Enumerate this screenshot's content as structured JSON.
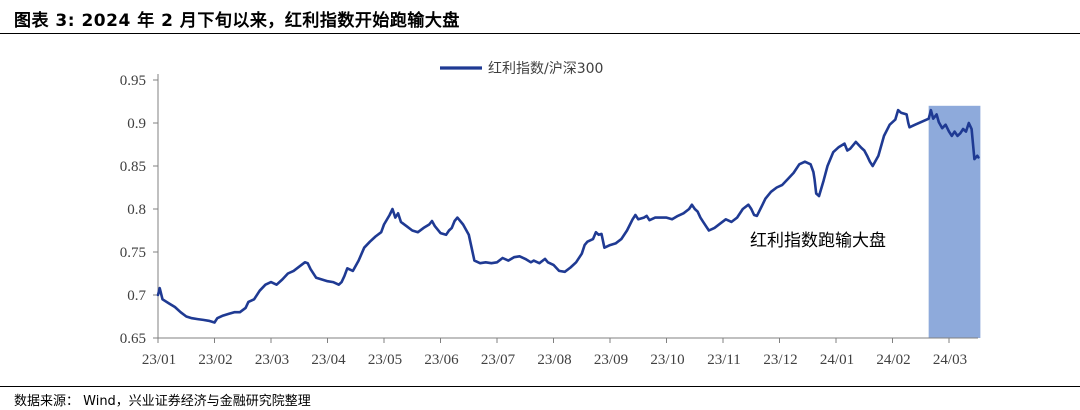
{
  "figure": {
    "title": "图表 3: 2024 年 2 月下旬以来，红利指数开始跑输大盘",
    "source": "数据来源： Wind，兴业证券经济与金融研究院整理"
  },
  "colors": {
    "line": "#1f3a93",
    "highlight": "#8eaadb",
    "axis": "#808080",
    "text": "#404040"
  },
  "chart_data": {
    "type": "line",
    "title": "",
    "xlabel": "",
    "ylabel": "",
    "ylim": [
      0.65,
      0.95
    ],
    "y_ticks": [
      0.65,
      0.7,
      0.75,
      0.8,
      0.85,
      0.9,
      0.95
    ],
    "y_tick_labels": [
      "0.65",
      "0.7",
      "0.75",
      "0.8",
      "0.85",
      "0.9",
      "0.95"
    ],
    "x_tick_labels": [
      "23/01",
      "23/02",
      "23/03",
      "23/04",
      "23/05",
      "23/06",
      "23/07",
      "23/08",
      "23/09",
      "23/10",
      "23/11",
      "23/12",
      "24/01",
      "24/02",
      "24/03"
    ],
    "x_range": [
      0,
      14.52
    ],
    "grid": false,
    "legend_position": "top-center",
    "highlight": {
      "x_start": 13.64,
      "x_end": 14.52,
      "label": "红利指数跑输大盘"
    },
    "series": [
      {
        "name": "红利指数/沪深300",
        "points": [
          [
            0.0,
            0.7
          ],
          [
            0.03,
            0.708
          ],
          [
            0.08,
            0.695
          ],
          [
            0.2,
            0.69
          ],
          [
            0.3,
            0.686
          ],
          [
            0.4,
            0.68
          ],
          [
            0.5,
            0.675
          ],
          [
            0.6,
            0.673
          ],
          [
            0.7,
            0.672
          ],
          [
            0.8,
            0.671
          ],
          [
            0.9,
            0.67
          ],
          [
            1.0,
            0.668
          ],
          [
            1.05,
            0.673
          ],
          [
            1.15,
            0.676
          ],
          [
            1.25,
            0.678
          ],
          [
            1.35,
            0.68
          ],
          [
            1.45,
            0.68
          ],
          [
            1.55,
            0.685
          ],
          [
            1.6,
            0.692
          ],
          [
            1.7,
            0.695
          ],
          [
            1.8,
            0.705
          ],
          [
            1.9,
            0.712
          ],
          [
            2.0,
            0.715
          ],
          [
            2.1,
            0.712
          ],
          [
            2.2,
            0.718
          ],
          [
            2.3,
            0.725
          ],
          [
            2.4,
            0.728
          ],
          [
            2.5,
            0.733
          ],
          [
            2.6,
            0.738
          ],
          [
            2.65,
            0.737
          ],
          [
            2.7,
            0.73
          ],
          [
            2.8,
            0.72
          ],
          [
            2.9,
            0.718
          ],
          [
            3.0,
            0.716
          ],
          [
            3.1,
            0.715
          ],
          [
            3.2,
            0.712
          ],
          [
            3.25,
            0.715
          ],
          [
            3.3,
            0.722
          ],
          [
            3.35,
            0.731
          ],
          [
            3.45,
            0.728
          ],
          [
            3.55,
            0.74
          ],
          [
            3.65,
            0.755
          ],
          [
            3.75,
            0.762
          ],
          [
            3.85,
            0.768
          ],
          [
            3.95,
            0.773
          ],
          [
            4.0,
            0.782
          ],
          [
            4.1,
            0.793
          ],
          [
            4.15,
            0.8
          ],
          [
            4.2,
            0.79
          ],
          [
            4.25,
            0.795
          ],
          [
            4.3,
            0.785
          ],
          [
            4.4,
            0.78
          ],
          [
            4.5,
            0.775
          ],
          [
            4.6,
            0.773
          ],
          [
            4.7,
            0.778
          ],
          [
            4.8,
            0.782
          ],
          [
            4.85,
            0.786
          ],
          [
            4.9,
            0.78
          ],
          [
            5.0,
            0.772
          ],
          [
            5.1,
            0.77
          ],
          [
            5.15,
            0.775
          ],
          [
            5.2,
            0.778
          ],
          [
            5.25,
            0.786
          ],
          [
            5.3,
            0.79
          ],
          [
            5.4,
            0.782
          ],
          [
            5.5,
            0.77
          ],
          [
            5.55,
            0.755
          ],
          [
            5.6,
            0.74
          ],
          [
            5.7,
            0.737
          ],
          [
            5.8,
            0.738
          ],
          [
            5.9,
            0.737
          ],
          [
            6.0,
            0.738
          ],
          [
            6.1,
            0.743
          ],
          [
            6.2,
            0.74
          ],
          [
            6.3,
            0.744
          ],
          [
            6.4,
            0.745
          ],
          [
            6.5,
            0.742
          ],
          [
            6.6,
            0.738
          ],
          [
            6.65,
            0.74
          ],
          [
            6.75,
            0.737
          ],
          [
            6.85,
            0.742
          ],
          [
            6.9,
            0.738
          ],
          [
            7.0,
            0.735
          ],
          [
            7.1,
            0.728
          ],
          [
            7.2,
            0.727
          ],
          [
            7.3,
            0.732
          ],
          [
            7.4,
            0.738
          ],
          [
            7.5,
            0.748
          ],
          [
            7.55,
            0.758
          ],
          [
            7.6,
            0.762
          ],
          [
            7.7,
            0.765
          ],
          [
            7.75,
            0.773
          ],
          [
            7.8,
            0.77
          ],
          [
            7.85,
            0.771
          ],
          [
            7.9,
            0.755
          ],
          [
            8.0,
            0.758
          ],
          [
            8.1,
            0.76
          ],
          [
            8.2,
            0.765
          ],
          [
            8.3,
            0.775
          ],
          [
            8.4,
            0.788
          ],
          [
            8.45,
            0.793
          ],
          [
            8.5,
            0.788
          ],
          [
            8.6,
            0.79
          ],
          [
            8.65,
            0.792
          ],
          [
            8.7,
            0.787
          ],
          [
            8.8,
            0.79
          ],
          [
            9.0,
            0.79
          ],
          [
            9.1,
            0.788
          ],
          [
            9.2,
            0.792
          ],
          [
            9.3,
            0.795
          ],
          [
            9.4,
            0.8
          ],
          [
            9.45,
            0.805
          ],
          [
            9.5,
            0.8
          ],
          [
            9.55,
            0.797
          ],
          [
            9.6,
            0.79
          ],
          [
            9.65,
            0.785
          ],
          [
            9.7,
            0.78
          ],
          [
            9.75,
            0.775
          ],
          [
            9.85,
            0.778
          ],
          [
            9.95,
            0.783
          ],
          [
            10.05,
            0.788
          ],
          [
            10.15,
            0.785
          ],
          [
            10.25,
            0.79
          ],
          [
            10.35,
            0.8
          ],
          [
            10.45,
            0.805
          ],
          [
            10.5,
            0.8
          ],
          [
            10.55,
            0.793
          ],
          [
            10.6,
            0.792
          ],
          [
            10.7,
            0.805
          ],
          [
            10.75,
            0.812
          ],
          [
            10.85,
            0.82
          ],
          [
            10.95,
            0.825
          ],
          [
            11.05,
            0.828
          ],
          [
            11.15,
            0.835
          ],
          [
            11.25,
            0.842
          ],
          [
            11.35,
            0.852
          ],
          [
            11.45,
            0.855
          ],
          [
            11.55,
            0.852
          ],
          [
            11.6,
            0.843
          ],
          [
            11.62,
            0.835
          ],
          [
            11.65,
            0.818
          ],
          [
            11.7,
            0.815
          ],
          [
            11.78,
            0.833
          ],
          [
            11.85,
            0.85
          ],
          [
            11.95,
            0.866
          ],
          [
            12.05,
            0.872
          ],
          [
            12.15,
            0.876
          ],
          [
            12.2,
            0.868
          ],
          [
            12.25,
            0.87
          ],
          [
            12.35,
            0.878
          ],
          [
            12.45,
            0.871
          ],
          [
            12.5,
            0.868
          ],
          [
            12.55,
            0.862
          ],
          [
            12.6,
            0.855
          ],
          [
            12.65,
            0.85
          ],
          [
            12.75,
            0.862
          ],
          [
            12.85,
            0.885
          ],
          [
            12.95,
            0.898
          ],
          [
            13.05,
            0.904
          ],
          [
            13.1,
            0.915
          ],
          [
            13.15,
            0.912
          ],
          [
            13.25,
            0.91
          ],
          [
            13.28,
            0.9
          ],
          [
            13.3,
            0.895
          ],
          [
            13.4,
            0.898
          ],
          [
            13.64,
            0.905
          ],
          [
            13.68,
            0.915
          ],
          [
            13.72,
            0.905
          ],
          [
            13.78,
            0.91
          ],
          [
            13.82,
            0.901
          ],
          [
            13.88,
            0.894
          ],
          [
            13.94,
            0.898
          ],
          [
            14.0,
            0.89
          ],
          [
            14.05,
            0.885
          ],
          [
            14.1,
            0.89
          ],
          [
            14.15,
            0.885
          ],
          [
            14.2,
            0.888
          ],
          [
            14.25,
            0.893
          ],
          [
            14.3,
            0.89
          ],
          [
            14.35,
            0.9
          ],
          [
            14.4,
            0.893
          ],
          [
            14.45,
            0.858
          ],
          [
            14.5,
            0.862
          ],
          [
            14.52,
            0.86
          ]
        ]
      }
    ]
  }
}
